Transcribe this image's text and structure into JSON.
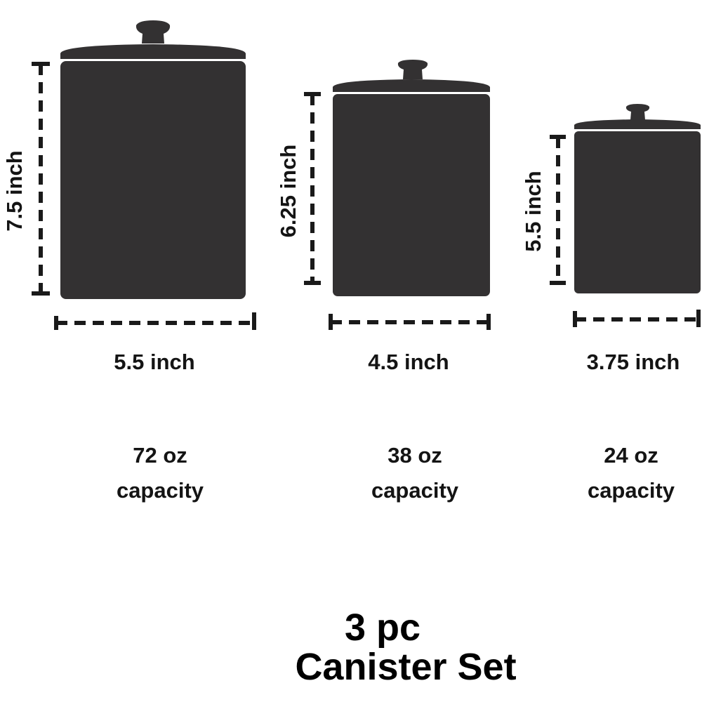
{
  "colors": {
    "canister": "#333132",
    "text": "#141414"
  },
  "canisters": [
    {
      "height_label": "7.5 inch",
      "width_label": "5.5 inch",
      "capacity_amount": "72 oz",
      "capacity_word": "capacity"
    },
    {
      "height_label": "6.25 inch",
      "width_label": "4.5 inch",
      "capacity_amount": "38 oz",
      "capacity_word": "capacity"
    },
    {
      "height_label": "5.5 inch",
      "width_label": "3.75 inch",
      "capacity_amount": "24 oz",
      "capacity_word": "capacity"
    }
  ],
  "title": {
    "line1": "3 pc",
    "line2": "Canister Set"
  }
}
